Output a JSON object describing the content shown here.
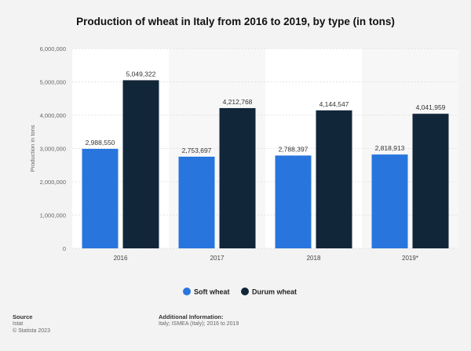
{
  "chart_data": {
    "type": "bar",
    "title": "Production of wheat in Italy from 2016 to 2019, by type (in tons)",
    "xlabel": "",
    "ylabel": "Production in tons",
    "categories": [
      "2016",
      "2017",
      "2018",
      "2019*"
    ],
    "series": [
      {
        "name": "Soft wheat",
        "color": "#2876dd",
        "values": [
          2988550,
          2753697,
          2788397,
          2818913
        ],
        "labels": [
          "2,988,550",
          "2,753,697",
          "2,788,397",
          "2,818,913"
        ]
      },
      {
        "name": "Durum wheat",
        "color": "#12263a",
        "values": [
          5049322,
          4212768,
          4144547,
          4041959
        ],
        "labels": [
          "5,049,322",
          "4,212,768",
          "4,144,547",
          "4,041,959"
        ]
      }
    ],
    "ylim": [
      0,
      6000000
    ],
    "yticks": [
      0,
      1000000,
      2000000,
      3000000,
      4000000,
      5000000,
      6000000
    ],
    "ytick_labels": [
      "0",
      "1,000,000",
      "2,000,000",
      "3,000,000",
      "4,000,000",
      "5,000,000",
      "6,000,000"
    ],
    "grid": true,
    "legend_position": "bottom"
  },
  "footer": {
    "source_heading": "Source",
    "source_lines": [
      "Istat",
      "© Statista 2023"
    ],
    "info_heading": "Additional Information:",
    "info_text": "Italy; ISMEA (Italy); 2016 to 2019"
  }
}
